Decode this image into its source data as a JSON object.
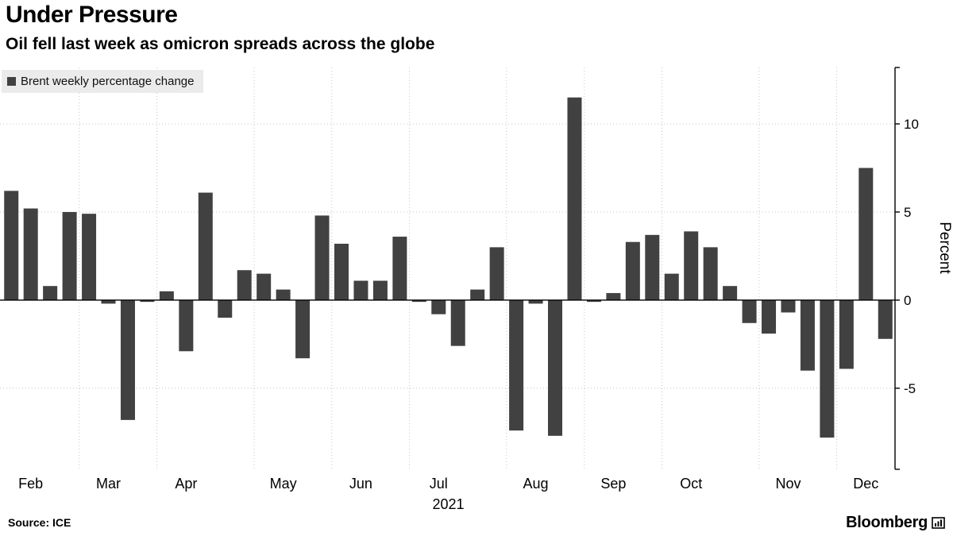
{
  "header": {
    "title": "Under Pressure",
    "subtitle": "Oil fell last week as omicron spreads across the globe"
  },
  "legend": {
    "label": "Brent weekly percentage change"
  },
  "footer": {
    "source": "Source: ICE",
    "brand": "Bloomberg"
  },
  "chart_data": {
    "type": "bar",
    "title": "Under Pressure",
    "subtitle": "Oil fell last week as omicron spreads across the globe",
    "series_name": "Brent weekly percentage change",
    "ylabel": "Percent",
    "year_label": "2021",
    "yticks": [
      -5,
      0,
      5,
      10
    ],
    "ylim": [
      -9.6,
      13.2
    ],
    "grid": true,
    "legend_position": "top-left",
    "bar_color": "#414141",
    "grid_color": "#c4c4c4",
    "axis_color": "#000000",
    "months": [
      {
        "label": "Feb",
        "weeks": 4
      },
      {
        "label": "Mar",
        "weeks": 4
      },
      {
        "label": "Apr",
        "weeks": 5
      },
      {
        "label": "May",
        "weeks": 4
      },
      {
        "label": "Jun",
        "weeks": 4
      },
      {
        "label": "Jul",
        "weeks": 5
      },
      {
        "label": "Aug",
        "weeks": 4
      },
      {
        "label": "Sep",
        "weeks": 4
      },
      {
        "label": "Oct",
        "weeks": 5
      },
      {
        "label": "Nov",
        "weeks": 4
      },
      {
        "label": "Dec",
        "weeks": 3
      }
    ],
    "values": [
      6.2,
      5.2,
      0.8,
      5.0,
      4.9,
      -0.2,
      -6.8,
      -0.1,
      0.5,
      -2.9,
      6.1,
      -1.0,
      1.7,
      1.5,
      0.6,
      -3.3,
      4.8,
      3.2,
      1.1,
      1.1,
      3.6,
      -0.1,
      -0.8,
      -2.6,
      0.6,
      3.0,
      -7.4,
      -0.2,
      -7.7,
      11.5,
      -0.1,
      0.4,
      3.3,
      3.7,
      1.5,
      3.9,
      3.0,
      0.8,
      -1.3,
      -1.9,
      -0.7,
      -4.0,
      -7.8,
      -3.9,
      7.5,
      -2.2
    ]
  }
}
